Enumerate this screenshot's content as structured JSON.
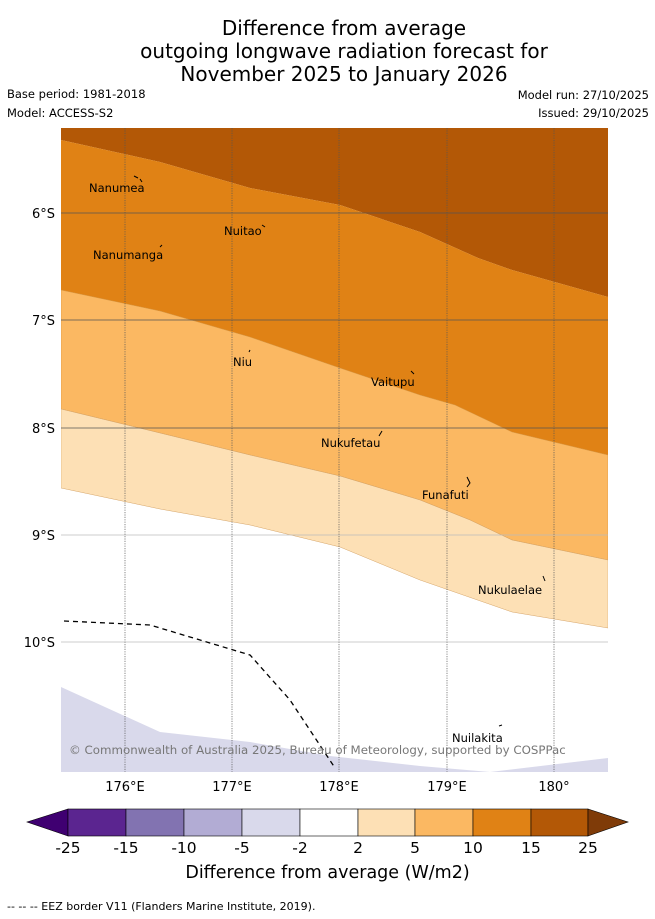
{
  "title": {
    "line1": "Difference from average",
    "line2": "outgoing longwave radiation forecast for",
    "line3": "November 2025 to January 2026"
  },
  "meta": {
    "base_period": "Base period: 1981-2018",
    "model": "Model: ACCESS-S2",
    "model_run": "Model run: 27/10/2025",
    "issued": "Issued: 29/10/2025"
  },
  "map": {
    "lat_labels": [
      "6°S",
      "7°S",
      "8°S",
      "9°S",
      "10°S"
    ],
    "lon_labels": [
      "176°E",
      "177°E",
      "178°E",
      "179°E",
      "180°"
    ],
    "places": [
      "Nanumea",
      "Nuitao",
      "Nanumanga",
      "Niu",
      "Vaitupu",
      "Nukufetau",
      "Funafuti",
      "Nukulaelae",
      "Nuilakita"
    ],
    "copyright": "© Commonwealth of Australia 2025, Bureau of Meteorology, supported by COSPPac"
  },
  "colorbar": {
    "title": "Difference from average (W/m2)",
    "ticks": [
      "-25",
      "-15",
      "-10",
      "-5",
      "-2",
      "2",
      "5",
      "10",
      "15",
      "25"
    ],
    "colors": [
      "#3f0071",
      "#5b2590",
      "#8273b1",
      "#b2acd4",
      "#d9d9eb",
      "#ffffff",
      "#fde0b5",
      "#fbb862",
      "#e08215",
      "#b35806",
      "#7f3b08"
    ]
  },
  "footer": {
    "legend": "-- -- -- EEZ border V11 (Flanders Marine Institute, 2019)."
  }
}
